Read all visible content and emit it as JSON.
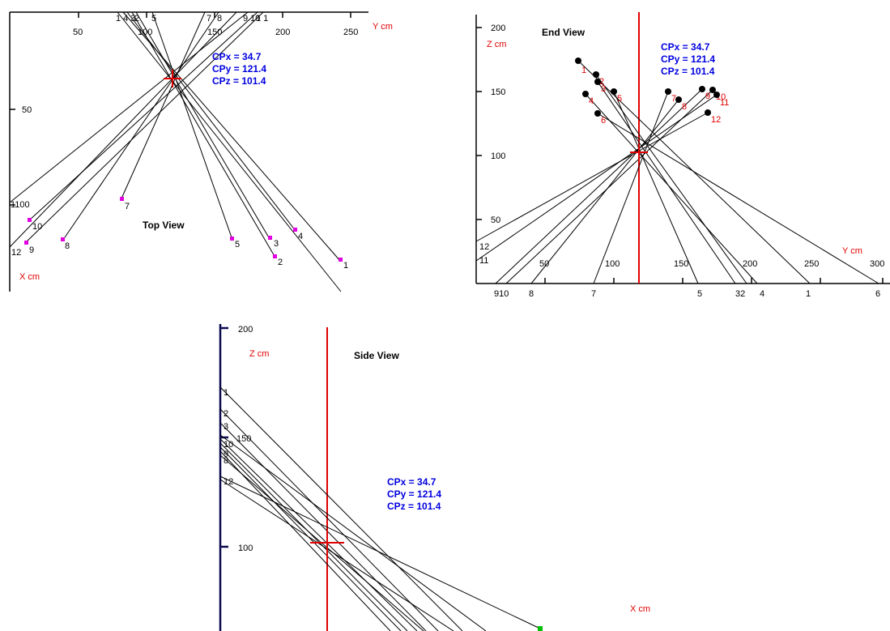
{
  "top_view": {
    "title": "Top View",
    "x_axis_label": "X cm",
    "y_axis_label": "Y cm",
    "y_ticks": [
      "50",
      "100",
      "150",
      "200",
      "250"
    ],
    "x_ticks": [
      "50"
    ],
    "x_axis_tick_label": "1100",
    "top_labels": [
      "1 4 3",
      "2",
      "5",
      "7",
      "8",
      "9 10",
      "1 1"
    ],
    "cp": {
      "x": "CPx = 34.7",
      "y": "CPy = 121.4",
      "z": "CPz = 101.4"
    },
    "points": [
      "1",
      "2",
      "3",
      "4",
      "5",
      "7",
      "8",
      "9",
      "10",
      "12"
    ]
  },
  "end_view": {
    "title": "End View",
    "z_axis_label": "Z cm",
    "y_axis_label": "Y cm",
    "z_ticks": [
      "200",
      "150",
      "100",
      "50"
    ],
    "y_ticks": [
      "50",
      "100",
      "150",
      "200",
      "250",
      "300"
    ],
    "cp": {
      "x": "CPx = 34.7",
      "y": "CPy = 121.4",
      "z": "CPz = 101.4"
    },
    "points": [
      "1",
      "2",
      "3",
      "4",
      "5",
      "6",
      "7",
      "8",
      "9",
      "10",
      "11",
      "12"
    ],
    "left_labels": [
      "12",
      "11"
    ],
    "bottom_labels": [
      "910",
      "8",
      "7",
      "5",
      "32",
      "4",
      "1",
      "6"
    ]
  },
  "side_view": {
    "title": "Side View",
    "z_axis_label": "Z cm",
    "x_axis_label": "X cm",
    "z_ticks": [
      "200",
      "150",
      "100"
    ],
    "cp": {
      "x": "CPx = 34.7",
      "y": "CPy = 121.4",
      "z": "CPz = 101.4"
    },
    "left_labels": [
      "1",
      "2",
      "3",
      "10",
      "9",
      "12"
    ],
    "left_label_8": "8"
  },
  "colors": {
    "axis": "#000000",
    "axis_side": "#0a0a50",
    "ray": "#000000",
    "center_marker": "#e00000",
    "cp_text": "#0000e0",
    "top_points": "#e000e0",
    "end_points": "#000000",
    "side_point": "#00c000"
  }
}
